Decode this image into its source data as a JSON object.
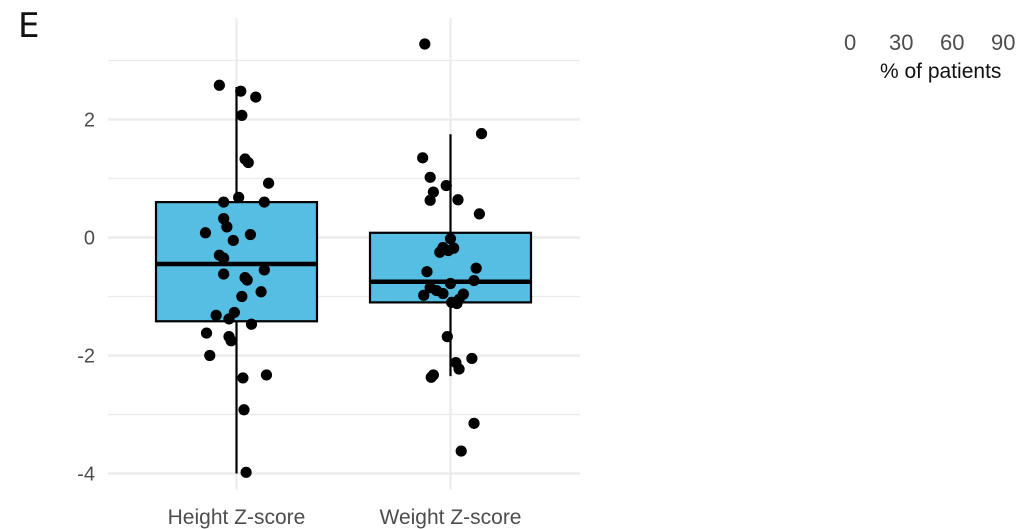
{
  "panel_label": "E",
  "colors": {
    "box_fill": "#56bde3",
    "box_stroke": "#000000",
    "point": "#000000",
    "grid": "#ebebeb"
  },
  "side_legend": {
    "ticks": [
      "0",
      "30",
      "60",
      "90"
    ],
    "label": "% of patients"
  },
  "chart_data": {
    "type": "box",
    "title": "",
    "xlabel": "",
    "ylabel": "",
    "categories": [
      "Height Z-score",
      "Weight Z-score"
    ],
    "ylim": [
      -4.3,
      3.5
    ],
    "y_ticks": [
      2,
      0,
      -2,
      -4
    ],
    "y_tick_labels": [
      "2",
      "0",
      "-2",
      "-4"
    ],
    "grid": true,
    "boxes": [
      {
        "category": "Height Z-score",
        "q1": -1.42,
        "median": -0.45,
        "q3": 0.6,
        "whisker_low": -4.0,
        "whisker_high": 2.55
      },
      {
        "category": "Weight Z-score",
        "q1": -1.1,
        "median": -0.75,
        "q3": 0.08,
        "whisker_low": -2.35,
        "whisker_high": 1.75
      }
    ],
    "points": [
      {
        "category": "Height Z-score",
        "jitter": -0.16,
        "y": 2.58
      },
      {
        "category": "Height Z-score",
        "jitter": 0.04,
        "y": 2.48
      },
      {
        "category": "Height Z-score",
        "jitter": 0.18,
        "y": 2.38
      },
      {
        "category": "Height Z-score",
        "jitter": 0.05,
        "y": 2.07
      },
      {
        "category": "Height Z-score",
        "jitter": 0.08,
        "y": 1.33
      },
      {
        "category": "Height Z-score",
        "jitter": 0.11,
        "y": 1.27
      },
      {
        "category": "Height Z-score",
        "jitter": 0.3,
        "y": 0.92
      },
      {
        "category": "Height Z-score",
        "jitter": 0.02,
        "y": 0.68
      },
      {
        "category": "Height Z-score",
        "jitter": -0.12,
        "y": 0.6
      },
      {
        "category": "Height Z-score",
        "jitter": 0.26,
        "y": 0.6
      },
      {
        "category": "Height Z-score",
        "jitter": -0.12,
        "y": 0.32
      },
      {
        "category": "Height Z-score",
        "jitter": -0.09,
        "y": 0.18
      },
      {
        "category": "Height Z-score",
        "jitter": -0.29,
        "y": 0.08
      },
      {
        "category": "Height Z-score",
        "jitter": 0.13,
        "y": 0.05
      },
      {
        "category": "Height Z-score",
        "jitter": -0.03,
        "y": -0.05
      },
      {
        "category": "Height Z-score",
        "jitter": -0.16,
        "y": -0.3
      },
      {
        "category": "Height Z-score",
        "jitter": -0.12,
        "y": -0.35
      },
      {
        "category": "Height Z-score",
        "jitter": 0.26,
        "y": -0.55
      },
      {
        "category": "Height Z-score",
        "jitter": -0.12,
        "y": -0.62
      },
      {
        "category": "Height Z-score",
        "jitter": 0.08,
        "y": -0.68
      },
      {
        "category": "Height Z-score",
        "jitter": 0.1,
        "y": -0.72
      },
      {
        "category": "Height Z-score",
        "jitter": 0.23,
        "y": -0.92
      },
      {
        "category": "Height Z-score",
        "jitter": 0.05,
        "y": -1.0
      },
      {
        "category": "Height Z-score",
        "jitter": -0.02,
        "y": -1.27
      },
      {
        "category": "Height Z-score",
        "jitter": -0.19,
        "y": -1.32
      },
      {
        "category": "Height Z-score",
        "jitter": -0.07,
        "y": -1.38
      },
      {
        "category": "Height Z-score",
        "jitter": 0.14,
        "y": -1.47
      },
      {
        "category": "Height Z-score",
        "jitter": -0.28,
        "y": -1.62
      },
      {
        "category": "Height Z-score",
        "jitter": -0.07,
        "y": -1.68
      },
      {
        "category": "Height Z-score",
        "jitter": -0.05,
        "y": -1.75
      },
      {
        "category": "Height Z-score",
        "jitter": -0.25,
        "y": -2.0
      },
      {
        "category": "Height Z-score",
        "jitter": 0.28,
        "y": -2.33
      },
      {
        "category": "Height Z-score",
        "jitter": 0.06,
        "y": -2.38
      },
      {
        "category": "Height Z-score",
        "jitter": 0.07,
        "y": -2.92
      },
      {
        "category": "Height Z-score",
        "jitter": 0.09,
        "y": -3.98
      },
      {
        "category": "Weight Z-score",
        "jitter": -0.24,
        "y": 3.28
      },
      {
        "category": "Weight Z-score",
        "jitter": 0.29,
        "y": 1.76
      },
      {
        "category": "Weight Z-score",
        "jitter": -0.26,
        "y": 1.35
      },
      {
        "category": "Weight Z-score",
        "jitter": -0.19,
        "y": 1.02
      },
      {
        "category": "Weight Z-score",
        "jitter": -0.04,
        "y": 0.88
      },
      {
        "category": "Weight Z-score",
        "jitter": -0.16,
        "y": 0.77
      },
      {
        "category": "Weight Z-score",
        "jitter": -0.19,
        "y": 0.63
      },
      {
        "category": "Weight Z-score",
        "jitter": 0.07,
        "y": 0.64
      },
      {
        "category": "Weight Z-score",
        "jitter": 0.27,
        "y": 0.4
      },
      {
        "category": "Weight Z-score",
        "jitter": 0.0,
        "y": -0.02
      },
      {
        "category": "Weight Z-score",
        "jitter": -0.07,
        "y": -0.17
      },
      {
        "category": "Weight Z-score",
        "jitter": 0.03,
        "y": -0.18
      },
      {
        "category": "Weight Z-score",
        "jitter": -0.02,
        "y": -0.22
      },
      {
        "category": "Weight Z-score",
        "jitter": -0.1,
        "y": -0.25
      },
      {
        "category": "Weight Z-score",
        "jitter": 0.24,
        "y": -0.52
      },
      {
        "category": "Weight Z-score",
        "jitter": -0.22,
        "y": -0.58
      },
      {
        "category": "Weight Z-score",
        "jitter": 0.22,
        "y": -0.73
      },
      {
        "category": "Weight Z-score",
        "jitter": 0.0,
        "y": -0.78
      },
      {
        "category": "Weight Z-score",
        "jitter": -0.19,
        "y": -0.85
      },
      {
        "category": "Weight Z-score",
        "jitter": -0.13,
        "y": -0.9
      },
      {
        "category": "Weight Z-score",
        "jitter": -0.07,
        "y": -0.95
      },
      {
        "category": "Weight Z-score",
        "jitter": 0.12,
        "y": -0.96
      },
      {
        "category": "Weight Z-score",
        "jitter": -0.25,
        "y": -0.98
      },
      {
        "category": "Weight Z-score",
        "jitter": 0.08,
        "y": -1.05
      },
      {
        "category": "Weight Z-score",
        "jitter": 0.01,
        "y": -1.1
      },
      {
        "category": "Weight Z-score",
        "jitter": 0.06,
        "y": -1.12
      },
      {
        "category": "Weight Z-score",
        "jitter": -0.03,
        "y": -1.68
      },
      {
        "category": "Weight Z-score",
        "jitter": 0.2,
        "y": -2.05
      },
      {
        "category": "Weight Z-score",
        "jitter": 0.05,
        "y": -2.12
      },
      {
        "category": "Weight Z-score",
        "jitter": 0.08,
        "y": -2.23
      },
      {
        "category": "Weight Z-score",
        "jitter": -0.16,
        "y": -2.33
      },
      {
        "category": "Weight Z-score",
        "jitter": -0.18,
        "y": -2.37
      },
      {
        "category": "Weight Z-score",
        "jitter": 0.22,
        "y": -3.15
      },
      {
        "category": "Weight Z-score",
        "jitter": 0.1,
        "y": -3.62
      }
    ]
  }
}
